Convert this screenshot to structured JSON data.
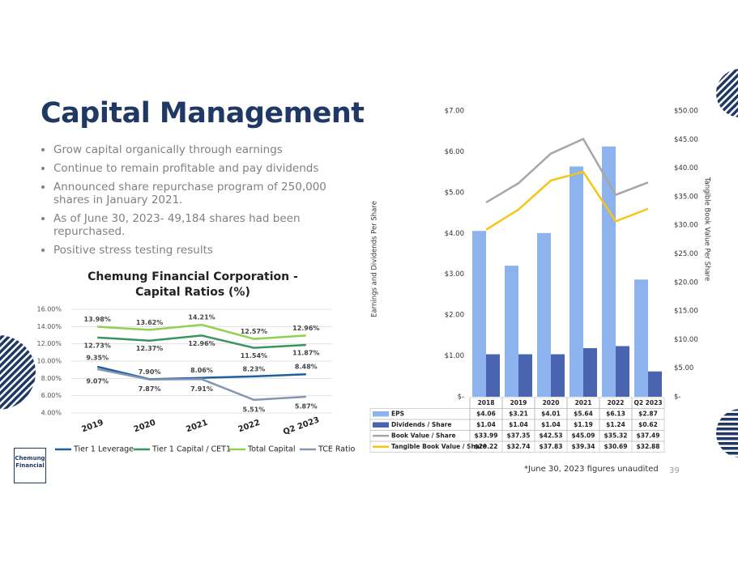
{
  "title": "Capital Management",
  "bullets": [
    "Grow capital organically through earnings",
    "Continue to remain profitable and pay dividends",
    "Announced share repurchase program of 250,000 shares in January 2021.",
    "As of June 30, 2023- 49,184 shares had been repurchased.",
    "Positive stress testing results"
  ],
  "footnote": "*June 30, 2023 figures unaudited",
  "page_number": "39",
  "logo": "Chemung Financial",
  "chart_data": [
    {
      "type": "line",
      "title": "Chemung Financial Corporation - Capital Ratios (%)",
      "categories": [
        "2019",
        "2020",
        "2021",
        "2022",
        "Q2 2023"
      ],
      "series": [
        {
          "name": "Tier 1 Leverage",
          "color": "#1f5fa0",
          "values": [
            9.35,
            7.9,
            8.06,
            8.23,
            8.48
          ],
          "value_labels": [
            "9.35%",
            "7.90%",
            "8.06%",
            "8.23%",
            "8.48%"
          ]
        },
        {
          "name": "Tier 1 Capital / CET1",
          "color": "#3a9460",
          "values": [
            12.73,
            12.37,
            12.96,
            11.54,
            11.87
          ],
          "value_labels": [
            "12.73%",
            "12.37%",
            "12.96%",
            "11.54%",
            "11.87%"
          ]
        },
        {
          "name": "Total Capital",
          "color": "#92d050",
          "values": [
            13.98,
            13.62,
            14.21,
            12.57,
            12.96
          ],
          "value_labels": [
            "13.98%",
            "13.62%",
            "14.21%",
            "12.57%",
            "12.96%"
          ]
        },
        {
          "name": "TCE Ratio",
          "color": "#8497b0",
          "values": [
            9.07,
            7.87,
            7.91,
            5.51,
            5.87
          ],
          "value_labels": [
            "9.07%",
            "7.87%",
            "7.91%",
            "5.51%",
            "5.87%"
          ]
        }
      ],
      "ylim": [
        4,
        16
      ],
      "yticks": [
        {
          "value": 4,
          "label": "4.00%"
        },
        {
          "value": 6,
          "label": "6.00%"
        },
        {
          "value": 8,
          "label": "8.00%"
        },
        {
          "value": 10,
          "label": "10.00%"
        },
        {
          "value": 12,
          "label": "12.00%"
        },
        {
          "value": 14,
          "label": "14.00%"
        },
        {
          "value": 16,
          "label": "16.00%"
        }
      ],
      "grid": true,
      "legend": "bottom"
    },
    {
      "type": "bar_line",
      "categories": [
        "2018",
        "2019",
        "2020",
        "2021",
        "2022",
        "Q2 2023"
      ],
      "ylabel": "Earnings and Dividends Per Share",
      "y2label": "Tangible Book Value Per Share",
      "series": [
        {
          "name": "EPS",
          "type": "bar",
          "color": "#8db3ee",
          "values": [
            4.06,
            3.21,
            4.01,
            5.64,
            6.13,
            2.87
          ],
          "value_labels": [
            "$4.06",
            "$3.21",
            "$4.01",
            "$5.64",
            "$6.13",
            "$2.87"
          ]
        },
        {
          "name": "Dividends / Share",
          "type": "bar",
          "color": "#4a64b0",
          "values": [
            1.04,
            1.04,
            1.04,
            1.19,
            1.24,
            0.62
          ],
          "value_labels": [
            "$1.04",
            "$1.04",
            "$1.04",
            "$1.19",
            "$1.24",
            "$0.62"
          ]
        },
        {
          "name": "Book Value / Share",
          "type": "line",
          "axis": "y2",
          "color": "#a6a6a6",
          "values": [
            33.99,
            37.35,
            42.53,
            45.09,
            35.32,
            37.49
          ],
          "value_labels": [
            "$33.99",
            "$37.35",
            "$42.53",
            "$45.09",
            "$35.32",
            "$37.49"
          ]
        },
        {
          "name": "Tangible Book Value / Share",
          "type": "line",
          "axis": "y2",
          "color": "#f5c518",
          "values": [
            29.22,
            32.74,
            37.83,
            39.34,
            30.69,
            32.88
          ],
          "value_labels": [
            "$29.22",
            "$32.74",
            "$37.83",
            "$39.34",
            "$30.69",
            "$32.88"
          ]
        }
      ],
      "ylim": [
        0,
        7
      ],
      "yticks": [
        {
          "value": 0,
          "label": "$-"
        },
        {
          "value": 1,
          "label": "$1.00"
        },
        {
          "value": 2,
          "label": "$2.00"
        },
        {
          "value": 3,
          "label": "$3.00"
        },
        {
          "value": 4,
          "label": "$4.00"
        },
        {
          "value": 5,
          "label": "$5.00"
        },
        {
          "value": 6,
          "label": "$6.00"
        },
        {
          "value": 7,
          "label": "$7.00"
        }
      ],
      "y2lim": [
        0,
        50
      ],
      "y2ticks": [
        {
          "value": 0,
          "label": "$-"
        },
        {
          "value": 5,
          "label": "$5.00"
        },
        {
          "value": 10,
          "label": "$10.00"
        },
        {
          "value": 15,
          "label": "$15.00"
        },
        {
          "value": 20,
          "label": "$20.00"
        },
        {
          "value": 25,
          "label": "$25.00"
        },
        {
          "value": 30,
          "label": "$30.00"
        },
        {
          "value": 35,
          "label": "$35.00"
        },
        {
          "value": 40,
          "label": "$40.00"
        },
        {
          "value": 45,
          "label": "$45.00"
        },
        {
          "value": 50,
          "label": "$50.00"
        }
      ],
      "grid": false
    }
  ]
}
